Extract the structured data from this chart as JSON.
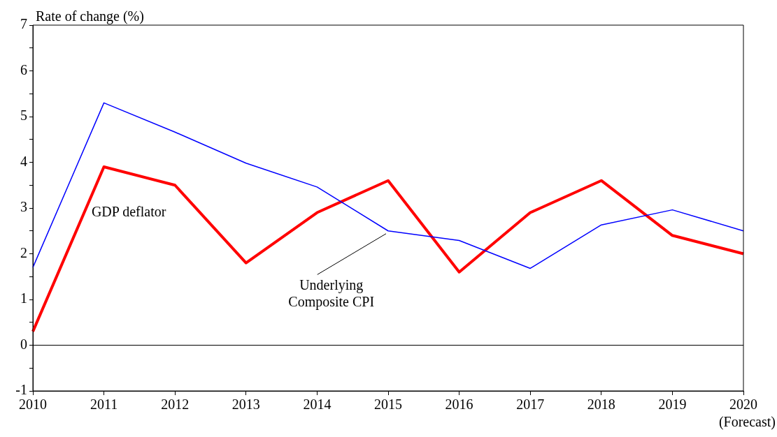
{
  "chart_data": {
    "type": "line",
    "ylabel": "Rate of change (%)",
    "categories": [
      "2010",
      "2011",
      "2012",
      "2013",
      "2014",
      "2015",
      "2016",
      "2017",
      "2018",
      "2019",
      "2020"
    ],
    "series": [
      {
        "name": "Underlying Composite CPI",
        "color": "#0000ff",
        "values": [
          1.7,
          5.3,
          4.66,
          3.98,
          3.46,
          2.5,
          2.29,
          1.68,
          2.63,
          2.96,
          2.5
        ]
      },
      {
        "name": "GDP deflator",
        "color": "#ff0000",
        "values": [
          0.3,
          3.9,
          3.5,
          1.8,
          2.9,
          3.6,
          1.6,
          2.9,
          3.6,
          2.4,
          2.0
        ]
      }
    ],
    "ylim": [
      -1,
      7
    ],
    "yticks": [
      -1,
      {
        "value": -0.5,
        "label": null
      },
      0,
      {
        "value": 0.5,
        "label": null
      },
      1,
      {
        "value": 1.5,
        "label": null
      },
      2,
      {
        "value": 2.5,
        "label": null
      },
      3,
      {
        "value": 3.5,
        "label": null
      },
      4,
      {
        "value": 4.5,
        "label": null
      },
      5,
      {
        "value": 5.5,
        "label": null
      },
      6,
      {
        "value": 6.5,
        "label": null
      },
      7
    ],
    "ref_lines": [
      {
        "axis": "y",
        "value": 0,
        "color": "#000000"
      }
    ],
    "annotations": [
      "(Forecast)"
    ],
    "grid": false,
    "legend": false,
    "marker": "none",
    "line_style": "solid"
  }
}
